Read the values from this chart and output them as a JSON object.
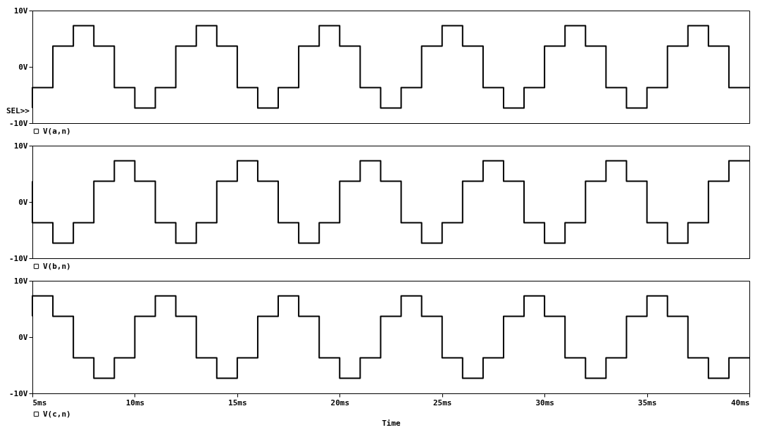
{
  "chart_data": [
    {
      "type": "step",
      "x": [
        5,
        5,
        6,
        7,
        8,
        9,
        10,
        11,
        12,
        13,
        14,
        15,
        16,
        17,
        18,
        19,
        20,
        21,
        22,
        23,
        24,
        25,
        26,
        27,
        28,
        29,
        30,
        31,
        32,
        33,
        34,
        35,
        36,
        37,
        38,
        39,
        40
      ],
      "xlim": [
        5,
        40
      ],
      "ylim": [
        -10,
        10
      ],
      "yticks": [
        {
          "value": 10,
          "label": "10V"
        },
        {
          "value": 0,
          "label": "0V"
        },
        {
          "value": -10,
          "label": "-10V"
        }
      ],
      "tick_labels": "y",
      "grid": false,
      "legend": "bottom left",
      "annotations": [
        "SEL>>"
      ],
      "series": [
        {
          "name": "V(a,n)",
          "color": "#000000",
          "values": [
            -7.3,
            -3.7,
            3.7,
            7.3,
            3.7,
            -3.7,
            -7.3,
            -3.7,
            3.7,
            7.3,
            3.7,
            -3.7,
            -7.3,
            -3.7,
            3.7,
            7.3,
            3.7,
            -3.7,
            -7.3,
            -3.7,
            3.7,
            7.3,
            3.7,
            -3.7,
            -7.3,
            -3.7,
            3.7,
            7.3,
            3.7,
            -3.7,
            -7.3,
            -3.7,
            3.7,
            7.3,
            3.7,
            -3.7,
            -3.7
          ]
        }
      ]
    },
    {
      "type": "step",
      "x": [
        5,
        5,
        6,
        7,
        8,
        9,
        10,
        11,
        12,
        13,
        14,
        15,
        16,
        17,
        18,
        19,
        20,
        21,
        22,
        23,
        24,
        25,
        26,
        27,
        28,
        29,
        30,
        31,
        32,
        33,
        34,
        35,
        36,
        37,
        38,
        39,
        40
      ],
      "xlim": [
        5,
        40
      ],
      "ylim": [
        -10,
        10
      ],
      "yticks": [
        {
          "value": 10,
          "label": "10V"
        },
        {
          "value": 0,
          "label": "0V"
        },
        {
          "value": -10,
          "label": "-10V"
        }
      ],
      "tick_labels": "y",
      "grid": false,
      "legend": "bottom left",
      "series": [
        {
          "name": "V(b,n)",
          "color": "#000000",
          "values": [
            3.7,
            -3.7,
            -7.3,
            -3.7,
            3.7,
            7.3,
            3.7,
            -3.7,
            -7.3,
            -3.7,
            3.7,
            7.3,
            3.7,
            -3.7,
            -7.3,
            -3.7,
            3.7,
            7.3,
            3.7,
            -3.7,
            -7.3,
            -3.7,
            3.7,
            7.3,
            3.7,
            -3.7,
            -7.3,
            -3.7,
            3.7,
            7.3,
            3.7,
            -3.7,
            -7.3,
            -3.7,
            3.7,
            7.3,
            7.3
          ]
        }
      ]
    },
    {
      "type": "step",
      "x": [
        5,
        5,
        6,
        7,
        8,
        9,
        10,
        11,
        12,
        13,
        14,
        15,
        16,
        17,
        18,
        19,
        20,
        21,
        22,
        23,
        24,
        25,
        26,
        27,
        28,
        29,
        30,
        31,
        32,
        33,
        34,
        35,
        36,
        37,
        38,
        39,
        40
      ],
      "xlim": [
        5,
        40
      ],
      "xticks": [
        {
          "value": 5,
          "label": "5ms"
        },
        {
          "value": 10,
          "label": "10ms"
        },
        {
          "value": 15,
          "label": "15ms"
        },
        {
          "value": 20,
          "label": "20ms"
        },
        {
          "value": 25,
          "label": "25ms"
        },
        {
          "value": 30,
          "label": "30ms"
        },
        {
          "value": 35,
          "label": "35ms"
        },
        {
          "value": 40,
          "label": "40ms"
        }
      ],
      "ylim": [
        -10,
        10
      ],
      "yticks": [
        {
          "value": 10,
          "label": "10V"
        },
        {
          "value": 0,
          "label": "0V"
        },
        {
          "value": -10,
          "label": "-10V"
        }
      ],
      "xlabel": "Time",
      "grid": false,
      "legend": "bottom left",
      "series": [
        {
          "name": "V(c,n)",
          "color": "#000000",
          "values": [
            3.7,
            7.3,
            3.7,
            -3.7,
            -7.3,
            -3.7,
            3.7,
            7.3,
            3.7,
            -3.7,
            -7.3,
            -3.7,
            3.7,
            7.3,
            3.7,
            -3.7,
            -7.3,
            -3.7,
            3.7,
            7.3,
            3.7,
            -3.7,
            -7.3,
            -3.7,
            3.7,
            7.3,
            3.7,
            -3.7,
            -7.3,
            -3.7,
            3.7,
            7.3,
            3.7,
            -3.7,
            -7.3,
            -3.7,
            -3.7
          ]
        }
      ]
    }
  ]
}
